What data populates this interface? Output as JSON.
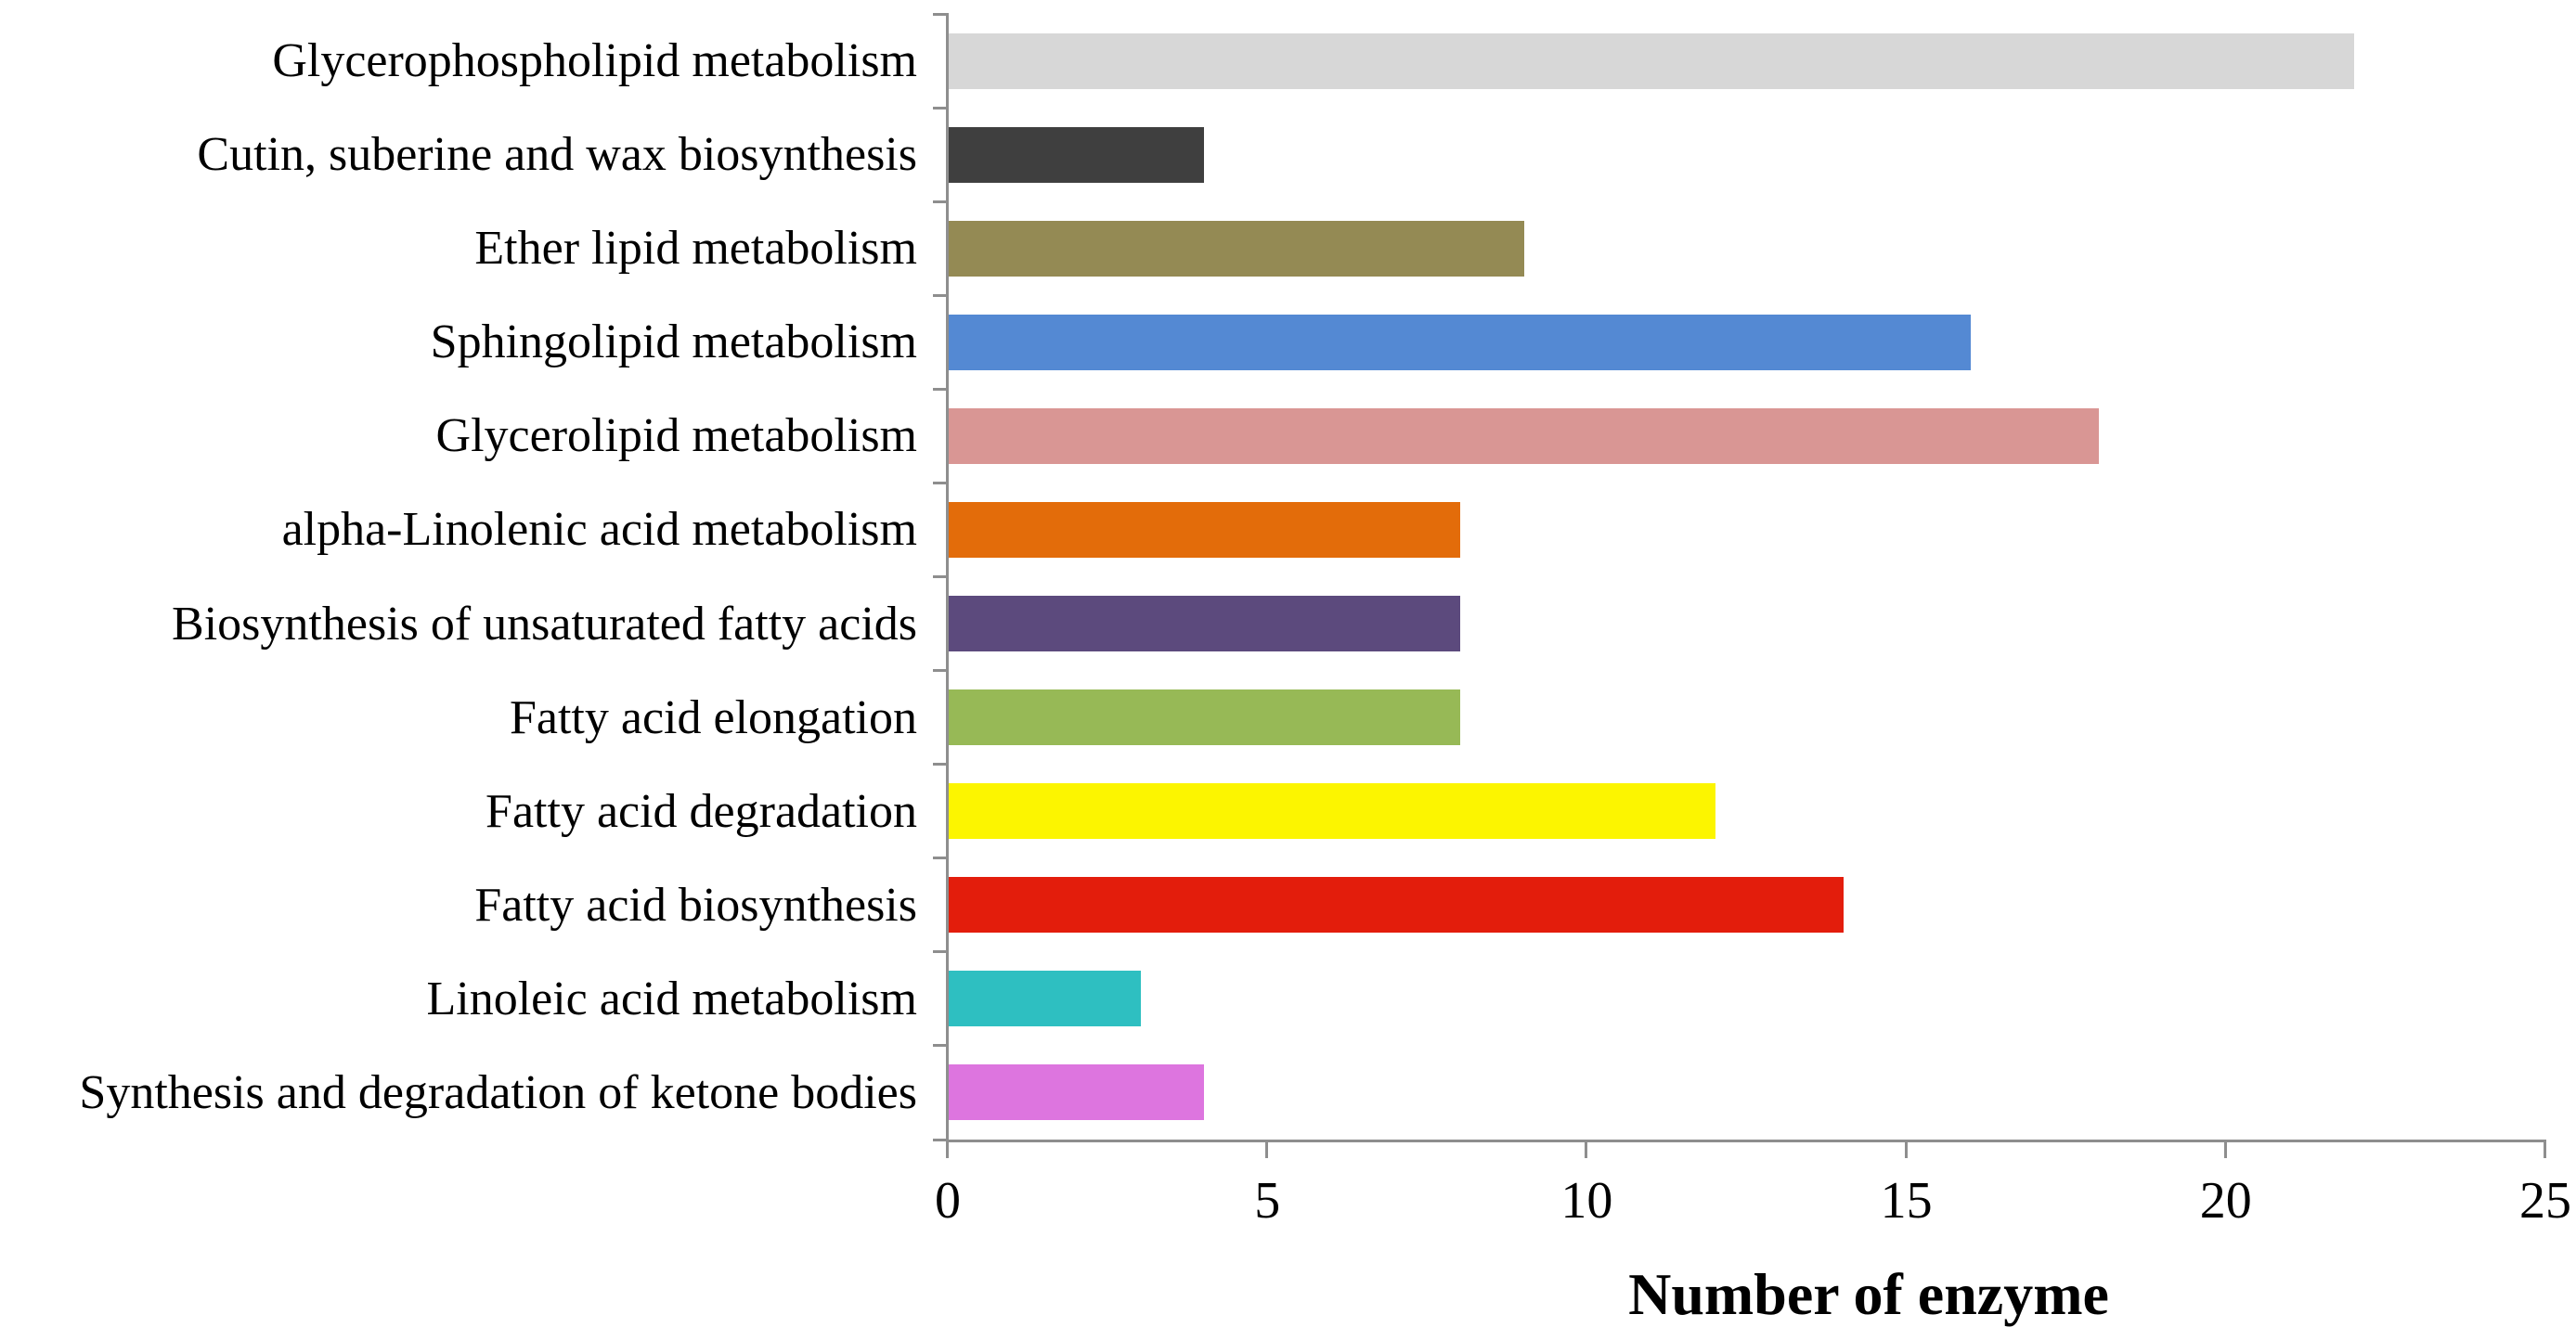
{
  "chart_data": {
    "type": "bar",
    "orientation": "horizontal",
    "title": "",
    "xlabel": "Number of enzyme",
    "ylabel": "",
    "categories": [
      "Glycerophospholipid metabolism",
      "Cutin, suberine and wax biosynthesis",
      "Ether lipid metabolism",
      "Sphingolipid metabolism",
      "Glycerolipid metabolism",
      "alpha-Linolenic acid metabolism",
      "Biosynthesis of unsaturated fatty acids",
      "Fatty acid elongation",
      "Fatty acid degradation",
      "Fatty acid biosynthesis",
      "Linoleic acid metabolism",
      "Synthesis and degradation of ketone bodies"
    ],
    "values": [
      22,
      4,
      9,
      16,
      18,
      8,
      8,
      8,
      12,
      14,
      3,
      4
    ],
    "colors": [
      "#d7d7d7",
      "#3f3f3f",
      "#948a54",
      "#5489d3",
      "#d99694",
      "#e36c0a",
      "#5c4a7d",
      "#97b956",
      "#fcf500",
      "#e31d0c",
      "#2ebfc1",
      "#dd75df"
    ],
    "xlim": [
      0,
      25
    ],
    "xticks": [
      0,
      5,
      10,
      15,
      20,
      25
    ],
    "grid": false,
    "legend": "none",
    "axis_color": "#8e8e8e",
    "text_color": "#000000"
  }
}
